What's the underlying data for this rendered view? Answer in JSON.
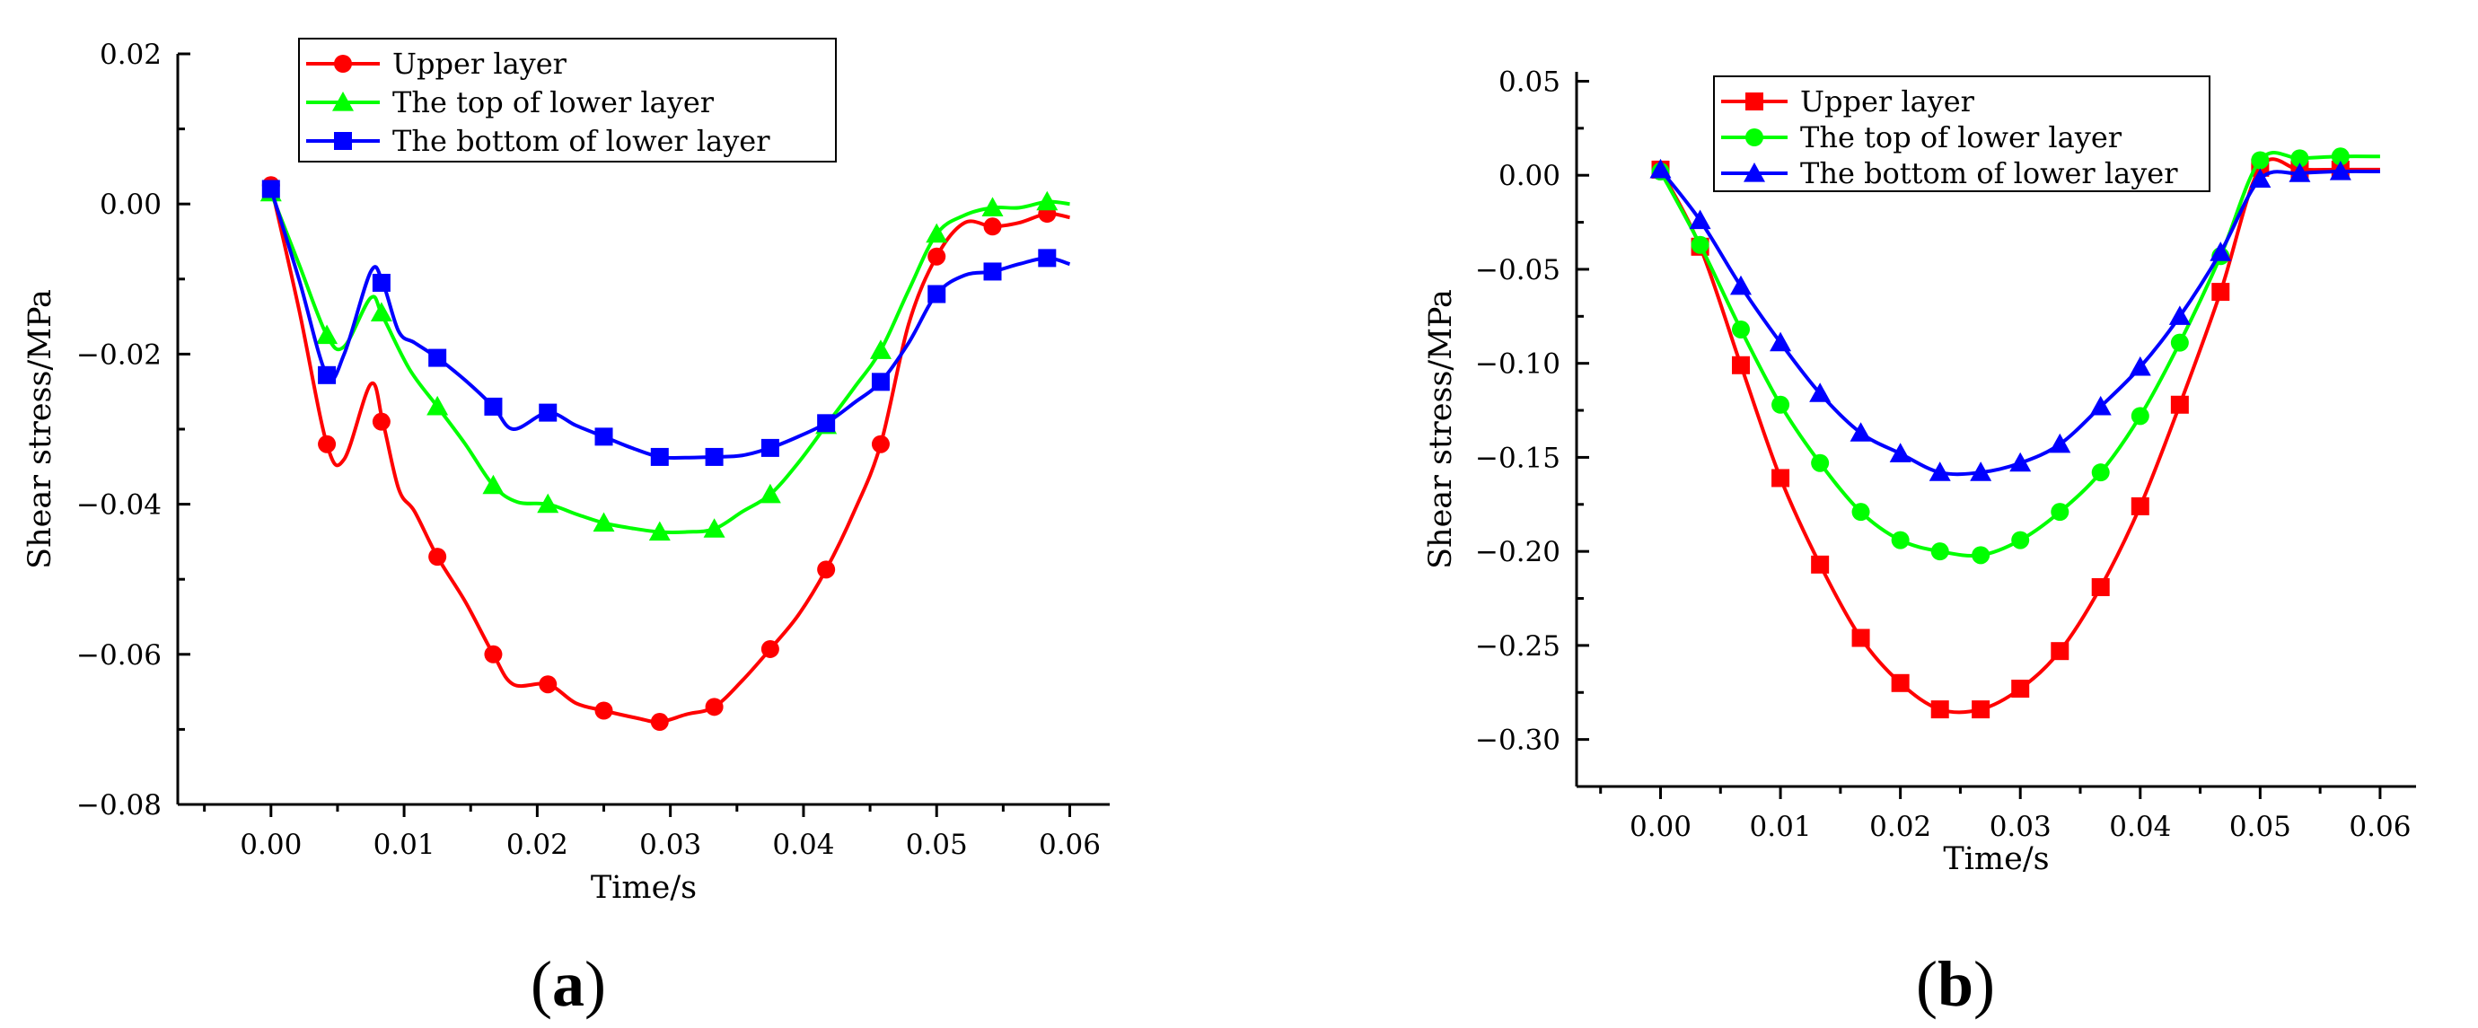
{
  "chart_data": [
    {
      "type": "line",
      "panel_label": "(a)",
      "xlabel": "Time/s",
      "ylabel": "Shear stress/MPa",
      "xlim": [
        -0.007,
        0.063
      ],
      "ylim": [
        -0.08,
        0.02
      ],
      "x_ticks": [
        0.0,
        0.01,
        0.02,
        0.03,
        0.04,
        0.05,
        0.06
      ],
      "x_tick_labels": [
        "0.00",
        "0.01",
        "0.02",
        "0.03",
        "0.04",
        "0.05",
        "0.06"
      ],
      "y_ticks": [
        0.02,
        0.0,
        -0.02,
        -0.04,
        -0.06,
        -0.08
      ],
      "y_tick_labels": [
        "0.02",
        "0.00",
        "−0.02",
        "−0.04",
        "−0.06",
        "−0.08"
      ],
      "legend_position": "top-center",
      "series": [
        {
          "name": "Upper layer",
          "color": "#ff0000",
          "marker": "circle",
          "curve_x": [
            0.0,
            0.0021,
            0.0042,
            0.0055,
            0.0075,
            0.0084,
            0.0096,
            0.0108,
            0.0125,
            0.0146,
            0.0167,
            0.0182,
            0.0208,
            0.0229,
            0.025,
            0.0275,
            0.0292,
            0.0312,
            0.0333,
            0.0354,
            0.0375,
            0.0396,
            0.0417,
            0.0438,
            0.0458,
            0.0479,
            0.05,
            0.0521,
            0.0542,
            0.0562,
            0.0583,
            0.06
          ],
          "curve_y": [
            0.0025,
            -0.014,
            -0.032,
            -0.034,
            -0.024,
            -0.029,
            -0.038,
            -0.041,
            -0.047,
            -0.053,
            -0.06,
            -0.064,
            -0.064,
            -0.0665,
            -0.0675,
            -0.0685,
            -0.069,
            -0.068,
            -0.067,
            -0.0635,
            -0.0593,
            -0.0548,
            -0.0487,
            -0.041,
            -0.032,
            -0.016,
            -0.007,
            -0.0025,
            -0.003,
            -0.0025,
            -0.0013,
            -0.0018
          ],
          "points_x": [
            0.0,
            0.0042,
            0.0083,
            0.0125,
            0.0167,
            0.0208,
            0.025,
            0.0292,
            0.0333,
            0.0375,
            0.0417,
            0.0458,
            0.05,
            0.0542,
            0.0583
          ],
          "points_y": [
            0.0025,
            -0.032,
            -0.029,
            -0.047,
            -0.06,
            -0.064,
            -0.0675,
            -0.069,
            -0.067,
            -0.0593,
            -0.0487,
            -0.032,
            -0.007,
            -0.003,
            -0.0013
          ]
        },
        {
          "name": "The top of lower layer",
          "color": "#00ff00",
          "marker": "triangle",
          "curve_x": [
            0.0,
            0.0021,
            0.0042,
            0.0055,
            0.0075,
            0.0084,
            0.0104,
            0.0125,
            0.0146,
            0.0167,
            0.0185,
            0.0208,
            0.0229,
            0.025,
            0.0271,
            0.0292,
            0.0312,
            0.0333,
            0.0354,
            0.0375,
            0.0396,
            0.0417,
            0.0438,
            0.0458,
            0.0479,
            0.05,
            0.0521,
            0.0542,
            0.0562,
            0.0583,
            0.06
          ],
          "curve_y": [
            0.0015,
            -0.008,
            -0.0175,
            -0.019,
            -0.0125,
            -0.015,
            -0.022,
            -0.027,
            -0.032,
            -0.0375,
            -0.0397,
            -0.04,
            -0.0413,
            -0.0425,
            -0.0432,
            -0.0437,
            -0.0437,
            -0.0433,
            -0.041,
            -0.0387,
            -0.0345,
            -0.0295,
            -0.0245,
            -0.0195,
            -0.0115,
            -0.004,
            -0.0015,
            -0.0005,
            -0.0005,
            0.0003,
            0.0
          ],
          "points_x": [
            0.0,
            0.0042,
            0.0083,
            0.0125,
            0.0167,
            0.0208,
            0.025,
            0.0292,
            0.0333,
            0.0375,
            0.0417,
            0.0458,
            0.05,
            0.0542,
            0.0583
          ],
          "points_y": [
            0.0015,
            -0.0175,
            -0.0145,
            -0.027,
            -0.0375,
            -0.04,
            -0.0425,
            -0.0437,
            -0.0433,
            -0.0387,
            -0.0295,
            -0.0195,
            -0.004,
            -0.0005,
            0.0003
          ]
        },
        {
          "name": "The bottom of lower layer",
          "color": "#0000ff",
          "marker": "square",
          "curve_x": [
            0.0,
            0.0021,
            0.0042,
            0.0055,
            0.0075,
            0.0084,
            0.0096,
            0.0108,
            0.0125,
            0.0146,
            0.0167,
            0.0182,
            0.0208,
            0.0229,
            0.025,
            0.0271,
            0.0292,
            0.0312,
            0.0333,
            0.0354,
            0.0375,
            0.0396,
            0.0417,
            0.0438,
            0.0458,
            0.0479,
            0.05,
            0.0521,
            0.0542,
            0.0562,
            0.0583,
            0.06
          ],
          "curve_y": [
            0.002,
            -0.01,
            -0.0228,
            -0.02,
            -0.009,
            -0.0105,
            -0.017,
            -0.0185,
            -0.0205,
            -0.0235,
            -0.027,
            -0.03,
            -0.0278,
            -0.0295,
            -0.031,
            -0.0325,
            -0.0337,
            -0.0338,
            -0.0337,
            -0.0335,
            -0.0325,
            -0.031,
            -0.0292,
            -0.0265,
            -0.0237,
            -0.0185,
            -0.012,
            -0.0095,
            -0.009,
            -0.008,
            -0.0072,
            -0.008
          ],
          "points_x": [
            0.0,
            0.0042,
            0.0083,
            0.0125,
            0.0167,
            0.0208,
            0.025,
            0.0292,
            0.0333,
            0.0375,
            0.0417,
            0.0458,
            0.05,
            0.0542,
            0.0583
          ],
          "points_y": [
            0.002,
            -0.0228,
            -0.0105,
            -0.0205,
            -0.027,
            -0.0278,
            -0.031,
            -0.0337,
            -0.0337,
            -0.0325,
            -0.0292,
            -0.0237,
            -0.012,
            -0.009,
            -0.0072
          ]
        }
      ]
    },
    {
      "type": "line",
      "panel_label": "(b)",
      "xlabel": "Time/s",
      "ylabel": "Shear stress/MPa",
      "xlim": [
        -0.007,
        0.063
      ],
      "ylim": [
        -0.325,
        0.055
      ],
      "x_ticks": [
        0.0,
        0.01,
        0.02,
        0.03,
        0.04,
        0.05,
        0.06
      ],
      "x_tick_labels": [
        "0.00",
        "0.01",
        "0.02",
        "0.03",
        "0.04",
        "0.05",
        "0.06"
      ],
      "y_ticks": [
        0.05,
        0.0,
        -0.05,
        -0.1,
        -0.15,
        -0.2,
        -0.25,
        -0.3
      ],
      "y_tick_labels": [
        "0.05",
        "0.00",
        "−0.05",
        "−0.10",
        "−0.15",
        "−0.20",
        "−0.25",
        "−0.30"
      ],
      "legend_position": "top-center",
      "series": [
        {
          "name": "Upper layer",
          "color": "#ff0000",
          "marker": "square",
          "curve_x": [
            0.0,
            0.0033,
            0.0067,
            0.01,
            0.0133,
            0.0167,
            0.02,
            0.0233,
            0.0267,
            0.03,
            0.0333,
            0.0367,
            0.04,
            0.0433,
            0.0467,
            0.05,
            0.0533,
            0.0567,
            0.06
          ],
          "curve_y": [
            0.003,
            -0.038,
            -0.101,
            -0.161,
            -0.207,
            -0.246,
            -0.27,
            -0.284,
            -0.284,
            -0.273,
            -0.253,
            -0.219,
            -0.176,
            -0.122,
            -0.062,
            0.004,
            0.003,
            0.003,
            0.003
          ],
          "points_x": [
            0.0,
            0.0033,
            0.0067,
            0.01,
            0.0133,
            0.0167,
            0.02,
            0.0233,
            0.0267,
            0.03,
            0.0333,
            0.0367,
            0.04,
            0.0433,
            0.0467,
            0.05,
            0.0533,
            0.0567
          ],
          "points_y": [
            0.003,
            -0.038,
            -0.101,
            -0.161,
            -0.207,
            -0.246,
            -0.27,
            -0.284,
            -0.284,
            -0.273,
            -0.253,
            -0.219,
            -0.176,
            -0.122,
            -0.062,
            0.004,
            0.003,
            0.003
          ]
        },
        {
          "name": "The top of lower layer",
          "color": "#00ff00",
          "marker": "circle",
          "curve_x": [
            0.0,
            0.0033,
            0.0067,
            0.01,
            0.0133,
            0.0167,
            0.02,
            0.0233,
            0.0267,
            0.03,
            0.0333,
            0.0367,
            0.04,
            0.0433,
            0.0467,
            0.05,
            0.0533,
            0.0567,
            0.06
          ],
          "curve_y": [
            0.002,
            -0.037,
            -0.082,
            -0.122,
            -0.153,
            -0.179,
            -0.194,
            -0.2,
            -0.202,
            -0.194,
            -0.179,
            -0.158,
            -0.128,
            -0.089,
            -0.043,
            0.008,
            0.009,
            0.01,
            0.01
          ],
          "points_x": [
            0.0,
            0.0033,
            0.0067,
            0.01,
            0.0133,
            0.0167,
            0.02,
            0.0233,
            0.0267,
            0.03,
            0.0333,
            0.0367,
            0.04,
            0.0433,
            0.0467,
            0.05,
            0.0533,
            0.0567
          ],
          "points_y": [
            0.002,
            -0.037,
            -0.082,
            -0.122,
            -0.153,
            -0.179,
            -0.194,
            -0.2,
            -0.202,
            -0.194,
            -0.179,
            -0.158,
            -0.128,
            -0.089,
            -0.043,
            0.008,
            0.009,
            0.01
          ]
        },
        {
          "name": "The bottom of lower layer",
          "color": "#0000ff",
          "marker": "triangle",
          "curve_x": [
            0.0,
            0.0033,
            0.0067,
            0.01,
            0.0133,
            0.0167,
            0.02,
            0.0233,
            0.0267,
            0.03,
            0.0333,
            0.0367,
            0.04,
            0.0433,
            0.0467,
            0.05,
            0.0533,
            0.0567,
            0.06
          ],
          "curve_y": [
            0.003,
            -0.024,
            -0.059,
            -0.089,
            -0.116,
            -0.137,
            -0.148,
            -0.158,
            -0.158,
            -0.153,
            -0.143,
            -0.123,
            -0.102,
            -0.075,
            -0.041,
            -0.002,
            0.001,
            0.002,
            0.002
          ],
          "points_x": [
            0.0,
            0.0033,
            0.0067,
            0.01,
            0.0133,
            0.0167,
            0.02,
            0.0233,
            0.0267,
            0.03,
            0.0333,
            0.0367,
            0.04,
            0.0433,
            0.0467,
            0.05,
            0.0533,
            0.0567
          ],
          "points_y": [
            0.003,
            -0.024,
            -0.059,
            -0.089,
            -0.116,
            -0.137,
            -0.148,
            -0.158,
            -0.158,
            -0.153,
            -0.143,
            -0.123,
            -0.102,
            -0.075,
            -0.041,
            -0.002,
            0.001,
            0.002
          ]
        }
      ]
    }
  ]
}
